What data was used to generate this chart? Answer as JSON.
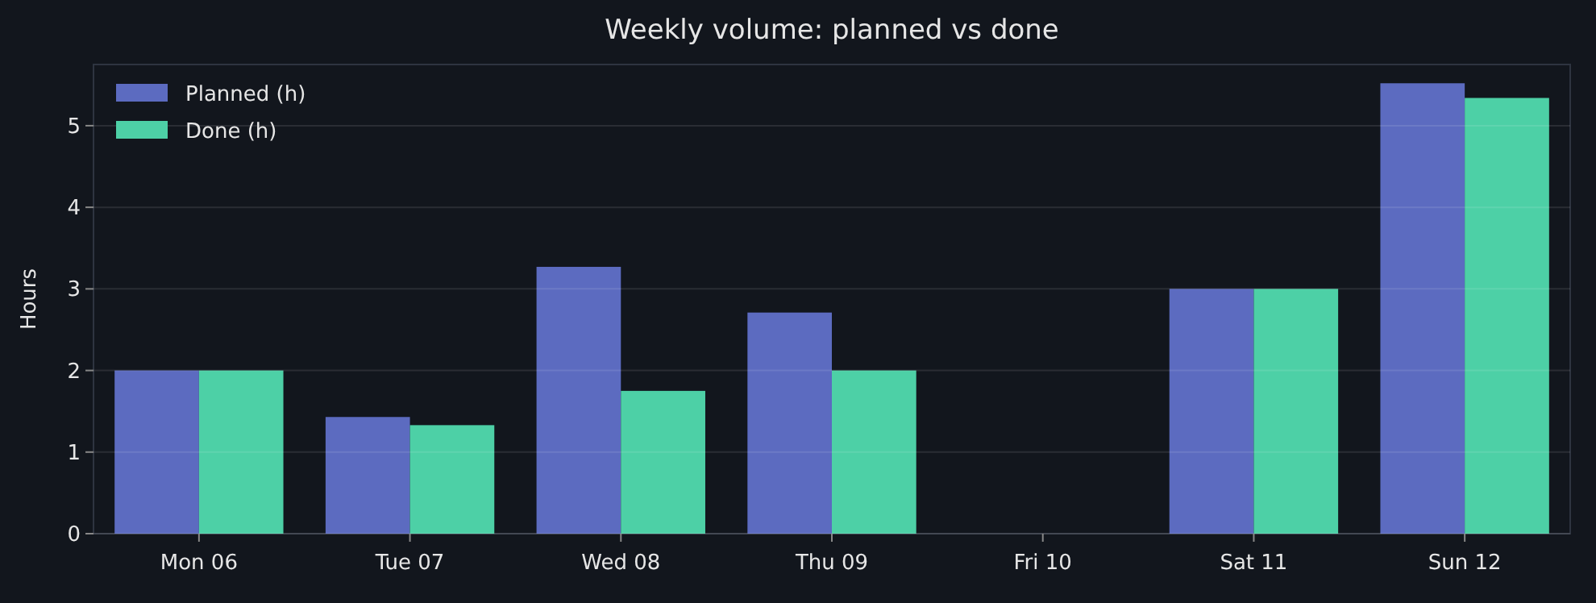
{
  "chart_data": {
    "type": "bar",
    "title": "Weekly volume: planned vs done",
    "ylabel": "Hours",
    "categories": [
      "Mon 06",
      "Tue 07",
      "Wed 08",
      "Thu 09",
      "Fri 10",
      "Sat 11",
      "Sun 12"
    ],
    "series": [
      {
        "name": "Planned (h)",
        "color": "#5c6bc0",
        "values": [
          2,
          1.43,
          3.27,
          2.71,
          0,
          3,
          5.52
        ]
      },
      {
        "name": "Done (h)",
        "color": "#4dd0a6",
        "values": [
          2,
          1.33,
          1.75,
          2,
          0,
          3,
          5.34
        ]
      }
    ],
    "ylim": [
      0,
      5.75
    ],
    "yticks": [
      0,
      1,
      2,
      3,
      4,
      5
    ],
    "grid": "y",
    "legend": "top left"
  }
}
